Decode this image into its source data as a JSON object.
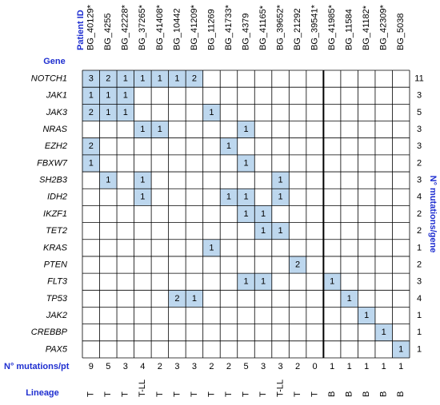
{
  "labels": {
    "patient_id": "Patient ID",
    "gene": "Gene",
    "mutations_per_gene": "N° mutations/gene",
    "mutations_per_pt": "N° mutations/pt",
    "lineage": "Lineage"
  },
  "patients": [
    "BG_40129*",
    "BG_4255",
    "BG_42228*",
    "BG_37265*",
    "BG_41408*",
    "BG_10442",
    "BG_41209*",
    "BG_11269",
    "BG_41733*",
    "BG_4379",
    "BG_41165*",
    "BG_39652*",
    "BG_21292",
    "BG_39541*",
    "BG_41985*",
    "BG_11584",
    "BG_41182*",
    "BG_42309*",
    "BG_5038"
  ],
  "genes": [
    {
      "name": "NOTCH1",
      "cells": [
        3,
        2,
        1,
        1,
        1,
        1,
        2,
        null,
        null,
        null,
        null,
        null,
        null,
        null,
        null,
        null,
        null,
        null,
        null
      ],
      "total": 11
    },
    {
      "name": "JAK1",
      "cells": [
        1,
        1,
        1,
        null,
        null,
        null,
        null,
        null,
        null,
        null,
        null,
        null,
        null,
        null,
        null,
        null,
        null,
        null,
        null
      ],
      "total": 3
    },
    {
      "name": "JAK3",
      "cells": [
        2,
        1,
        1,
        null,
        null,
        null,
        null,
        1,
        null,
        null,
        null,
        null,
        null,
        null,
        null,
        null,
        null,
        null,
        null
      ],
      "total": 5
    },
    {
      "name": "NRAS",
      "cells": [
        null,
        null,
        null,
        1,
        1,
        null,
        null,
        null,
        null,
        1,
        null,
        null,
        null,
        null,
        null,
        null,
        null,
        null,
        null
      ],
      "total": 3
    },
    {
      "name": "EZH2",
      "cells": [
        2,
        null,
        null,
        null,
        null,
        null,
        null,
        null,
        1,
        null,
        null,
        null,
        null,
        null,
        null,
        null,
        null,
        null,
        null
      ],
      "total": 3
    },
    {
      "name": "FBXW7",
      "cells": [
        1,
        null,
        null,
        null,
        null,
        null,
        null,
        null,
        null,
        1,
        null,
        null,
        null,
        null,
        null,
        null,
        null,
        null,
        null
      ],
      "total": 2
    },
    {
      "name": "SH2B3",
      "cells": [
        null,
        1,
        null,
        1,
        null,
        null,
        null,
        null,
        null,
        null,
        null,
        1,
        null,
        null,
        null,
        null,
        null,
        null,
        null
      ],
      "total": 3
    },
    {
      "name": "IDH2",
      "cells": [
        null,
        null,
        null,
        1,
        null,
        null,
        null,
        null,
        1,
        1,
        null,
        1,
        null,
        null,
        null,
        null,
        null,
        null,
        null
      ],
      "total": 4
    },
    {
      "name": "IKZF1",
      "cells": [
        null,
        null,
        null,
        null,
        null,
        null,
        null,
        null,
        null,
        1,
        1,
        null,
        null,
        null,
        null,
        null,
        null,
        null,
        null
      ],
      "total": 2
    },
    {
      "name": "TET2",
      "cells": [
        null,
        null,
        null,
        null,
        null,
        null,
        null,
        null,
        null,
        null,
        1,
        1,
        null,
        null,
        null,
        null,
        null,
        null,
        null
      ],
      "total": 2
    },
    {
      "name": "KRAS",
      "cells": [
        null,
        null,
        null,
        null,
        null,
        null,
        null,
        1,
        null,
        null,
        null,
        null,
        null,
        null,
        null,
        null,
        null,
        null,
        null
      ],
      "total": 1
    },
    {
      "name": "PTEN",
      "cells": [
        null,
        null,
        null,
        null,
        null,
        null,
        null,
        null,
        null,
        null,
        null,
        null,
        2,
        null,
        null,
        null,
        null,
        null,
        null
      ],
      "total": 2
    },
    {
      "name": "FLT3",
      "cells": [
        null,
        null,
        null,
        null,
        null,
        null,
        null,
        null,
        null,
        1,
        1,
        null,
        null,
        null,
        1,
        null,
        null,
        null,
        null
      ],
      "total": 3
    },
    {
      "name": "TP53",
      "cells": [
        null,
        null,
        null,
        null,
        null,
        2,
        1,
        null,
        null,
        null,
        null,
        null,
        null,
        null,
        null,
        1,
        null,
        null,
        null
      ],
      "total": 4
    },
    {
      "name": "JAK2",
      "cells": [
        null,
        null,
        null,
        null,
        null,
        null,
        null,
        null,
        null,
        null,
        null,
        null,
        null,
        null,
        null,
        null,
        1,
        null,
        null
      ],
      "total": 1
    },
    {
      "name": "CREBBP",
      "cells": [
        null,
        null,
        null,
        null,
        null,
        null,
        null,
        null,
        null,
        null,
        null,
        null,
        null,
        null,
        null,
        null,
        null,
        1,
        null
      ],
      "total": 1
    },
    {
      "name": "PAX5",
      "cells": [
        null,
        null,
        null,
        null,
        null,
        null,
        null,
        null,
        null,
        null,
        null,
        null,
        null,
        null,
        null,
        null,
        null,
        null,
        1
      ],
      "total": 1
    }
  ],
  "patient_totals": [
    9,
    5,
    3,
    4,
    2,
    3,
    3,
    2,
    2,
    5,
    3,
    3,
    2,
    0,
    1,
    1,
    1,
    1,
    1
  ],
  "lineage": [
    "T",
    "T",
    "T",
    "T-LL",
    "T",
    "T",
    "T",
    "T",
    "T",
    "T",
    "T",
    "T-LL",
    "T",
    "T",
    "B",
    "B",
    "B",
    "B",
    "B"
  ]
}
